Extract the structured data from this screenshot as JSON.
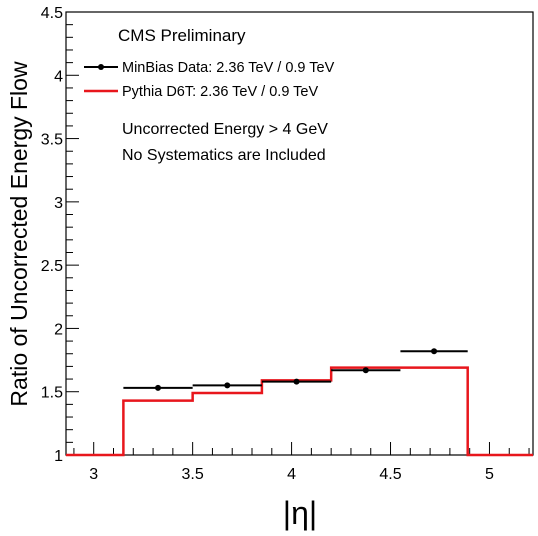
{
  "chart_data": {
    "type": "line",
    "header": "CMS Preliminary",
    "xlabel": "|η|",
    "ylabel": "Ratio of Uncorrected Energy Flow",
    "xlim": [
      2.86,
      5.22
    ],
    "ylim": [
      1,
      4.5
    ],
    "xticks": [
      "3",
      "3.5",
      "4",
      "4.5",
      "5"
    ],
    "yticks": [
      "1",
      "1.5",
      "2",
      "2.5",
      "3",
      "3.5",
      "4",
      "4.5"
    ],
    "series": [
      {
        "name": "MinBias Data: 2.36 TeV / 0.9 TeV",
        "kind": "points",
        "color": "#000000",
        "points": [
          {
            "x": 3.325,
            "xlo": 3.15,
            "xhi": 3.5,
            "y": 1.53
          },
          {
            "x": 3.675,
            "xlo": 3.5,
            "xhi": 3.85,
            "y": 1.55
          },
          {
            "x": 4.025,
            "xlo": 3.85,
            "xhi": 4.2,
            "y": 1.58
          },
          {
            "x": 4.375,
            "xlo": 4.2,
            "xhi": 4.55,
            "y": 1.67
          },
          {
            "x": 4.72,
            "xlo": 4.55,
            "xhi": 4.89,
            "y": 1.82
          }
        ]
      },
      {
        "name": "Pythia D6T: 2.36 TeV / 0.9 TeV",
        "kind": "step",
        "color": "#e8161c",
        "edges": [
          2.86,
          3.15,
          3.5,
          3.85,
          4.2,
          4.55,
          4.89,
          5.22
        ],
        "values": [
          1.0,
          1.43,
          1.49,
          1.59,
          1.69,
          1.69,
          1.0
        ]
      }
    ],
    "notes": [
      "Uncorrected Energy > 4 GeV",
      "No Systematics are Included"
    ],
    "grid": false,
    "legend_position": "top-left"
  }
}
